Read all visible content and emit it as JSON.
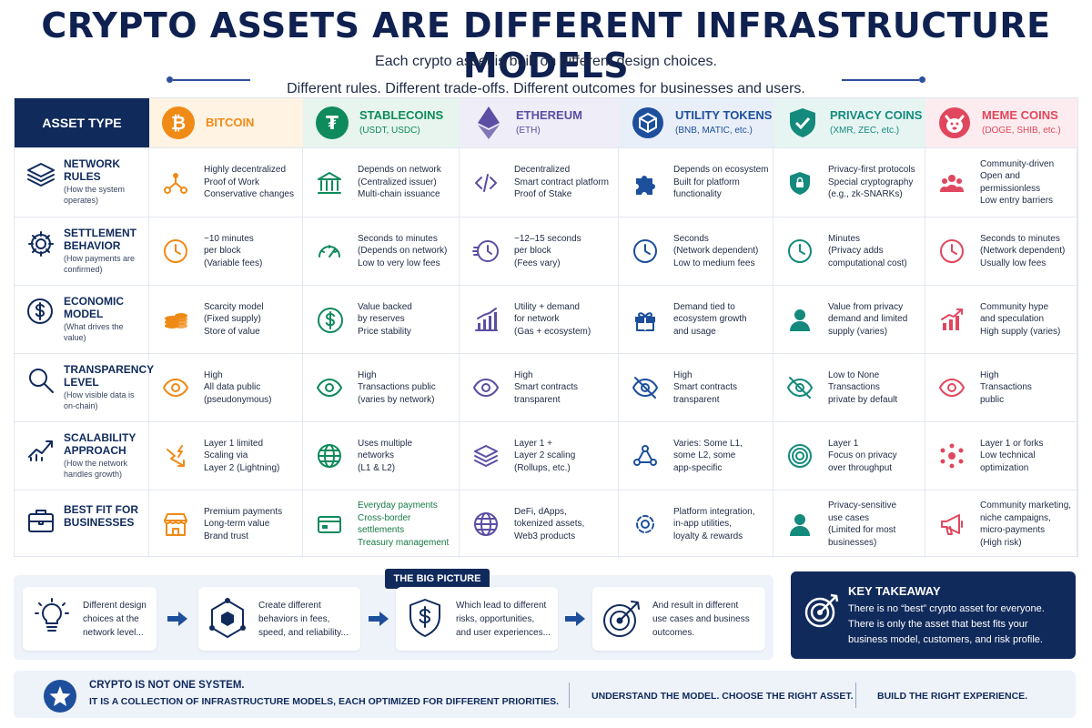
{
  "header": {
    "title": "CRYPTO ASSETS ARE DIFFERENT INFRASTRUCTURE MODELS",
    "subtitle_line1": "Each crypto asset is built on different design choices.",
    "subtitle_line2": "Different rules. Different trade-offs. Different outcomes for businesses and users."
  },
  "table": {
    "corner_label": "ASSET TYPE",
    "columns": [
      {
        "name": "BITCOIN",
        "sub": "",
        "color": "#f08a16",
        "bg": "#fff3e4",
        "icon": "bitcoin-icon"
      },
      {
        "name": "STABLECOINS",
        "sub": "(USDT, USDC)",
        "color": "#0f8a5c",
        "bg": "#e7f5ee",
        "icon": "tether-icon"
      },
      {
        "name": "ETHEREUM",
        "sub": "(ETH)",
        "color": "#5b4ea3",
        "bg": "#efedf8",
        "icon": "ethereum-icon"
      },
      {
        "name": "UTILITY TOKENS",
        "sub": "(BNB, MATIC, etc.)",
        "color": "#1d4f9c",
        "bg": "#e9eff9",
        "icon": "cube-icon"
      },
      {
        "name": "PRIVACY COINS",
        "sub": "(XMR, ZEC, etc.)",
        "color": "#138a7c",
        "bg": "#e6f4f2",
        "icon": "shield-check-icon"
      },
      {
        "name": "MEME COINS",
        "sub": "(DOGE, SHIB, etc.)",
        "color": "#e0475e",
        "bg": "#fdecef",
        "icon": "dog-icon"
      }
    ],
    "rows": [
      {
        "title": "NETWORK RULES",
        "desc": "(How the system operates)",
        "icon": "layers-icon",
        "cells": [
          {
            "icon": "network-nodes-icon",
            "text": "Highly decentralized\nProof of Work\nConservative changes"
          },
          {
            "icon": "bank-icon",
            "text": "Depends on network\n(Centralized issuer)\nMulti-chain issuance"
          },
          {
            "icon": "code-icon",
            "text": "Decentralized\nSmart contract platform\nProof of Stake"
          },
          {
            "icon": "puzzle-icon",
            "text": "Depends on ecosystem\nBuilt for platform\nfunctionality"
          },
          {
            "icon": "shield-lock-icon",
            "text": "Privacy-first protocols\nSpecial cryptography\n(e.g., zk-SNARKs)"
          },
          {
            "icon": "community-icon",
            "text": "Community-driven\nOpen and permissionless\nLow entry barriers"
          }
        ]
      },
      {
        "title": "SETTLEMENT BEHAVIOR",
        "desc": "(How payments are confirmed)",
        "icon": "gear-icon",
        "cells": [
          {
            "icon": "clock-icon",
            "text": "~10 minutes\nper block\n(Variable fees)"
          },
          {
            "icon": "speedometer-icon",
            "text": "Seconds to minutes\n(Depends on network)\nLow to very low fees"
          },
          {
            "icon": "fast-clock-icon",
            "text": "~12–15 seconds\nper block\n(Fees vary)"
          },
          {
            "icon": "clock-icon",
            "text": "Seconds\n(Network dependent)\nLow to medium fees"
          },
          {
            "icon": "clock-icon",
            "text": "Minutes\n(Privacy adds\ncomputational cost)"
          },
          {
            "icon": "clock-icon",
            "text": "Seconds to minutes\n(Network dependent)\nUsually low fees"
          }
        ]
      },
      {
        "title": "ECONOMIC MODEL",
        "desc": "(What drives the value)",
        "icon": "dollar-circle-icon",
        "cells": [
          {
            "icon": "coin-stack-icon",
            "text": "Scarcity model\n(Fixed supply)\nStore of value"
          },
          {
            "icon": "dollar-circle-icon",
            "text": "Value backed\nby reserves\nPrice stability"
          },
          {
            "icon": "bar-chart-icon",
            "text": "Utility + demand\nfor network\n(Gas + ecosystem)"
          },
          {
            "icon": "gift-icon",
            "text": "Demand tied to\necosystem growth\nand usage"
          },
          {
            "icon": "person-icon",
            "text": "Value from privacy\ndemand and limited\nsupply (varies)"
          },
          {
            "icon": "trend-chart-icon",
            "text": "Community hype\nand speculation\nHigh supply (varies)"
          }
        ]
      },
      {
        "title": "TRANSPARENCY LEVEL",
        "desc": "(How visible data is on-chain)",
        "icon": "magnifier-icon",
        "cells": [
          {
            "icon": "eye-icon",
            "text": "High\nAll data public\n(pseudonymous)"
          },
          {
            "icon": "eye-icon",
            "text": "High\nTransactions public\n(varies by network)"
          },
          {
            "icon": "eye-icon",
            "text": "High\nSmart contracts\ntransparent"
          },
          {
            "icon": "eye-slash-icon",
            "text": "High\nSmart contracts\ntransparent"
          },
          {
            "icon": "eye-slash-icon",
            "text": "Low to None\nTransactions\nprivate by default"
          },
          {
            "icon": "eye-icon",
            "text": "High\nTransactions\npublic"
          }
        ]
      },
      {
        "title": "SCALABILITY APPROACH",
        "desc": "(How the network handles growth)",
        "icon": "growth-chart-icon",
        "cells": [
          {
            "icon": "lightning-route-icon",
            "text": "Layer 1 limited\nScaling via\nLayer 2 (Lightning)"
          },
          {
            "icon": "globe-icon",
            "text": "Uses multiple\nnetworks\n(L1 & L2)"
          },
          {
            "icon": "stack-layers-icon",
            "text": "Layer 1 +\nLayer 2 scaling\n(Rollups, etc.)"
          },
          {
            "icon": "share-nodes-icon",
            "text": "Varies: Some L1,\nsome L2, some\napp-specific"
          },
          {
            "icon": "target-rings-icon",
            "text": "Layer 1\nFocus on privacy\nover throughput"
          },
          {
            "icon": "molecule-icon",
            "text": "Layer 1 or forks\nLow technical\noptimization"
          }
        ]
      },
      {
        "title": "BEST FIT FOR BUSINESSES",
        "desc": "",
        "icon": "briefcase-icon",
        "cells": [
          {
            "icon": "storefront-icon",
            "text": "Premium payments\nLong-term value\nBrand trust"
          },
          {
            "icon": "payment-card-icon",
            "text": "Everyday payments\nCross-border\nsettlements\nTreasury management"
          },
          {
            "icon": "globe-icon",
            "text": "DeFi, dApps,\ntokenized assets,\nWeb3 products"
          },
          {
            "icon": "cog-icon",
            "text": "Platform integration,\nin-app utilities,\nloyalty & rewards"
          },
          {
            "icon": "person-icon",
            "text": "Privacy-sensitive\nuse cases\n(Limited for most\nbusinesses)"
          },
          {
            "icon": "megaphone-icon",
            "text": "Community marketing,\nniche campaigns,\nmicro-payments\n(High risk)"
          }
        ]
      }
    ]
  },
  "big_picture": {
    "label": "THE BIG PICTURE",
    "steps": [
      {
        "icon": "lightbulb-icon",
        "text": "Different design\nchoices at the\nnetwork level..."
      },
      {
        "icon": "hexagon-network-icon",
        "text": "Create different\nbehaviors in fees,\nspeed, and reliability..."
      },
      {
        "icon": "shield-dollar-icon",
        "text": "Which lead to different\nrisks, opportunities,\nand user experiences..."
      },
      {
        "icon": "target-arrow-icon",
        "text": "And result in different\nuse cases and business\noutcomes."
      }
    ]
  },
  "key_takeaway": {
    "title": "KEY TAKEAWAY",
    "body": "There is no “best” crypto asset for everyone.\nThere is only the asset that best fits your\nbusiness model, customers, and risk profile."
  },
  "footer": {
    "title": "CRYPTO IS NOT ONE SYSTEM.",
    "subtitle": "IT IS A COLLECTION OF INFRASTRUCTURE MODELS, EACH OPTIMIZED FOR DIFFERENT PRIORITIES.",
    "message1": "UNDERSTAND THE MODEL. CHOOSE THE RIGHT ASSET.",
    "message2": "BUILD THE RIGHT EXPERIENCE."
  }
}
